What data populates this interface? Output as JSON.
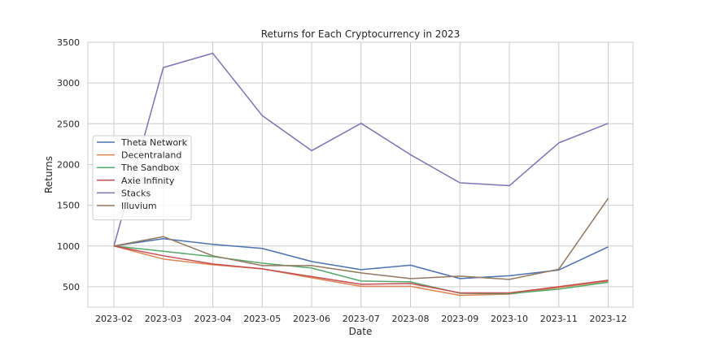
{
  "chart_data": {
    "type": "line",
    "title": "Returns for Each Cryptocurrency in 2023",
    "xlabel": "Date",
    "ylabel": "Returns",
    "x": [
      "2023-02",
      "2023-03",
      "2023-04",
      "2023-05",
      "2023-06",
      "2023-07",
      "2023-08",
      "2023-09",
      "2023-10",
      "2023-11",
      "2023-12"
    ],
    "ylim": [
      250,
      3500
    ],
    "yticks": [
      500,
      1000,
      1500,
      2000,
      2500,
      3000,
      3500
    ],
    "grid": true,
    "legend_position": "center-left",
    "series": [
      {
        "name": "Theta Network",
        "color": "#4c72b0",
        "values": [
          1000,
          1090,
          1020,
          970,
          810,
          710,
          765,
          600,
          635,
          705,
          990
        ]
      },
      {
        "name": "Decentraland",
        "color": "#dd8452",
        "values": [
          1000,
          840,
          770,
          720,
          610,
          505,
          505,
          395,
          410,
          490,
          570
        ]
      },
      {
        "name": "The Sandbox",
        "color": "#55a868",
        "values": [
          1000,
          935,
          870,
          790,
          730,
          570,
          560,
          420,
          415,
          470,
          555
        ]
      },
      {
        "name": "Axie Infinity",
        "color": "#c44e52",
        "values": [
          1000,
          880,
          780,
          720,
          625,
          530,
          540,
          425,
          425,
          500,
          580
        ]
      },
      {
        "name": "Stacks",
        "color": "#8172b3",
        "values": [
          1000,
          3190,
          3365,
          2600,
          2170,
          2505,
          2120,
          1775,
          1740,
          2265,
          2505
        ]
      },
      {
        "name": "Illuvium",
        "color": "#937860",
        "values": [
          1000,
          1115,
          880,
          760,
          760,
          670,
          600,
          630,
          590,
          715,
          1585
        ]
      }
    ]
  }
}
